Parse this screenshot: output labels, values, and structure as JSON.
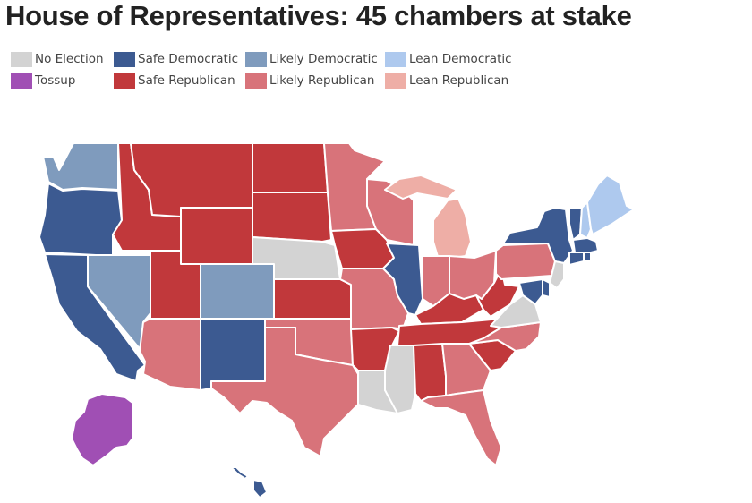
{
  "title": "House of Representatives: 45 chambers at stake",
  "legend": [
    {
      "label": "No Election",
      "color": "#d3d3d3"
    },
    {
      "label": "Safe Democratic",
      "color": "#3c5a91"
    },
    {
      "label": "Likely Democratic",
      "color": "#7f9bbd"
    },
    {
      "label": "Lean Democratic",
      "color": "#aec9ee"
    },
    {
      "label": "Tossup",
      "color": "#a04fb4"
    },
    {
      "label": "Safe Republican",
      "color": "#c1383b"
    },
    {
      "label": "Likely Republican",
      "color": "#d8737a"
    },
    {
      "label": "Lean Republican",
      "color": "#eeaea6"
    }
  ],
  "states": {
    "WA": "Likely Democratic",
    "OR": "Safe Democratic",
    "CA": "Safe Democratic",
    "NV": "Likely Democratic",
    "ID": "Safe Republican",
    "MT": "Safe Republican",
    "WY": "Safe Republican",
    "UT": "Safe Republican",
    "CO": "Likely Democratic",
    "AZ": "Likely Republican",
    "NM": "Safe Democratic",
    "ND": "Safe Republican",
    "SD": "Safe Republican",
    "NE": "No Election",
    "KS": "Safe Republican",
    "OK": "Likely Republican",
    "TX": "Likely Republican",
    "MN": "Likely Republican",
    "IA": "Safe Republican",
    "MO": "Likely Republican",
    "AR": "Safe Republican",
    "LA": "No Election",
    "WI": "Likely Republican",
    "IL": "Safe Democratic",
    "MI": "Lean Republican",
    "IN": "Likely Republican",
    "OH": "Likely Republican",
    "KY": "Safe Republican",
    "TN": "Safe Republican",
    "MS": "No Election",
    "AL": "Safe Republican",
    "GA": "Likely Republican",
    "FL": "Likely Republican",
    "SC": "Safe Republican",
    "NC": "Likely Republican",
    "VA": "No Election",
    "WV": "Safe Republican",
    "PA": "Likely Republican",
    "NY": "Safe Democratic",
    "VT": "Safe Democratic",
    "NH": "Lean Democratic",
    "ME": "Lean Democratic",
    "MA": "Safe Democratic",
    "CT": "Safe Democratic",
    "RI": "Safe Democratic",
    "NJ": "No Election",
    "DE": "Safe Democratic",
    "MD": "Safe Democratic",
    "AK": "Tossup",
    "HI": "Safe Democratic"
  }
}
